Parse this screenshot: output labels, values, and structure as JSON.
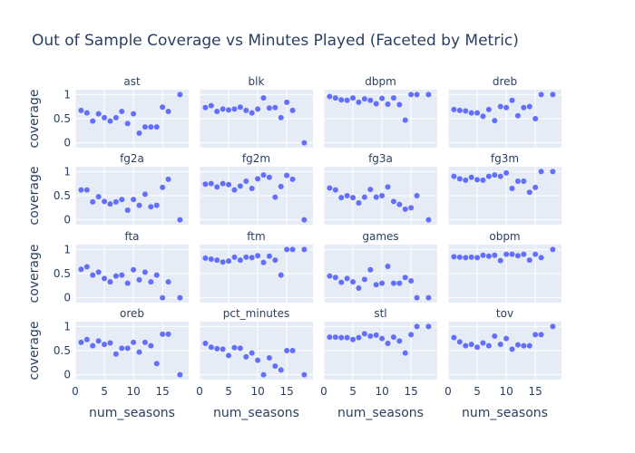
{
  "chart_data": {
    "type": "scatter",
    "title": "Out of Sample Coverage vs Minutes Played (Faceted by Metric)",
    "xlabel": "num_seasons",
    "ylabel": "coverage",
    "xlim": [
      0,
      19.5
    ],
    "ylim": [
      -0.1,
      1.1
    ],
    "x_ticks": [
      0,
      5,
      10,
      15
    ],
    "y_ticks": [
      0,
      0.5,
      1
    ],
    "grid": true,
    "colors": {
      "marker": "#636efa",
      "plot_bg": "#e5ecf6",
      "grid": "#ffffff",
      "text": "#2a3f5f"
    },
    "facets": [
      {
        "name": "ast",
        "x": [
          1,
          2,
          3,
          4,
          5,
          6,
          7,
          8,
          9,
          10,
          11,
          12,
          13,
          14,
          15,
          16,
          18
        ],
        "y": [
          0.67,
          0.62,
          0.45,
          0.6,
          0.52,
          0.45,
          0.52,
          0.65,
          0.4,
          0.6,
          0.2,
          0.33,
          0.33,
          0.33,
          0.74,
          0.65,
          1.0
        ]
      },
      {
        "name": "blk",
        "x": [
          1,
          2,
          3,
          4,
          5,
          6,
          7,
          8,
          9,
          10,
          11,
          12,
          13,
          14,
          15,
          16,
          18
        ],
        "y": [
          0.73,
          0.77,
          0.65,
          0.7,
          0.68,
          0.7,
          0.74,
          0.67,
          0.62,
          0.7,
          0.93,
          0.72,
          0.73,
          0.52,
          0.84,
          0.67,
          0.0
        ]
      },
      {
        "name": "dbpm",
        "x": [
          1,
          2,
          3,
          4,
          5,
          6,
          7,
          8,
          9,
          10,
          11,
          12,
          13,
          14,
          15,
          16,
          18
        ],
        "y": [
          0.96,
          0.93,
          0.89,
          0.88,
          0.93,
          0.84,
          0.91,
          0.88,
          0.81,
          0.92,
          0.8,
          0.93,
          0.79,
          0.47,
          1.0,
          1.0,
          1.0
        ]
      },
      {
        "name": "dreb",
        "x": [
          1,
          2,
          3,
          4,
          5,
          6,
          7,
          8,
          9,
          10,
          11,
          12,
          13,
          14,
          15,
          16,
          18
        ],
        "y": [
          0.69,
          0.67,
          0.66,
          0.62,
          0.62,
          0.55,
          0.69,
          0.46,
          0.75,
          0.73,
          0.88,
          0.56,
          0.73,
          0.75,
          0.5,
          1.0,
          1.0
        ]
      },
      {
        "name": "fg2a",
        "x": [
          1,
          2,
          3,
          4,
          5,
          6,
          7,
          8,
          9,
          10,
          11,
          12,
          13,
          14,
          15,
          16,
          18
        ],
        "y": [
          0.62,
          0.62,
          0.37,
          0.48,
          0.38,
          0.33,
          0.37,
          0.42,
          0.2,
          0.42,
          0.3,
          0.53,
          0.27,
          0.3,
          0.67,
          0.84,
          0.0
        ]
      },
      {
        "name": "fg2m",
        "x": [
          1,
          2,
          3,
          4,
          5,
          6,
          7,
          8,
          9,
          10,
          11,
          12,
          13,
          14,
          15,
          16,
          18
        ],
        "y": [
          0.74,
          0.75,
          0.68,
          0.75,
          0.73,
          0.62,
          0.7,
          0.8,
          0.65,
          0.85,
          0.93,
          0.88,
          0.47,
          0.69,
          0.92,
          0.84,
          0.0
        ]
      },
      {
        "name": "fg3a",
        "x": [
          1,
          2,
          3,
          4,
          5,
          6,
          7,
          8,
          9,
          10,
          11,
          12,
          13,
          14,
          15,
          16,
          18
        ],
        "y": [
          0.66,
          0.62,
          0.46,
          0.5,
          0.46,
          0.35,
          0.47,
          0.63,
          0.47,
          0.5,
          0.68,
          0.38,
          0.32,
          0.22,
          0.25,
          0.5,
          0.0
        ]
      },
      {
        "name": "fg3m",
        "x": [
          1,
          2,
          3,
          4,
          5,
          6,
          7,
          8,
          9,
          10,
          11,
          12,
          13,
          14,
          15,
          16,
          18
        ],
        "y": [
          0.9,
          0.85,
          0.82,
          0.88,
          0.83,
          0.82,
          0.9,
          0.93,
          0.9,
          0.97,
          0.65,
          0.8,
          0.8,
          0.57,
          0.67,
          1.0,
          1.0
        ]
      },
      {
        "name": "fta",
        "x": [
          1,
          2,
          3,
          4,
          5,
          6,
          7,
          8,
          9,
          10,
          11,
          12,
          13,
          14,
          15,
          16,
          18
        ],
        "y": [
          0.59,
          0.64,
          0.47,
          0.53,
          0.4,
          0.33,
          0.45,
          0.47,
          0.3,
          0.58,
          0.37,
          0.53,
          0.33,
          0.47,
          0.0,
          0.33,
          0.0
        ]
      },
      {
        "name": "ftm",
        "x": [
          1,
          2,
          3,
          4,
          5,
          6,
          7,
          8,
          9,
          10,
          11,
          12,
          13,
          14,
          15,
          16,
          18
        ],
        "y": [
          0.82,
          0.8,
          0.78,
          0.74,
          0.76,
          0.84,
          0.78,
          0.84,
          0.83,
          0.87,
          0.73,
          0.86,
          0.78,
          0.47,
          1.0,
          1.0,
          1.0
        ]
      },
      {
        "name": "games",
        "x": [
          1,
          2,
          3,
          4,
          5,
          6,
          7,
          8,
          9,
          10,
          11,
          12,
          13,
          14,
          15,
          16,
          18
        ],
        "y": [
          0.45,
          0.42,
          0.32,
          0.4,
          0.33,
          0.2,
          0.38,
          0.58,
          0.27,
          0.3,
          0.65,
          0.3,
          0.3,
          0.42,
          0.35,
          0.0,
          0.0
        ]
      },
      {
        "name": "obpm",
        "x": [
          1,
          2,
          3,
          4,
          5,
          6,
          7,
          8,
          9,
          10,
          11,
          12,
          13,
          14,
          15,
          16,
          18
        ],
        "y": [
          0.85,
          0.84,
          0.83,
          0.84,
          0.83,
          0.88,
          0.86,
          0.88,
          0.77,
          0.9,
          0.9,
          0.87,
          0.9,
          0.78,
          0.9,
          0.83,
          1.0
        ]
      },
      {
        "name": "oreb",
        "x": [
          1,
          2,
          3,
          4,
          5,
          6,
          7,
          8,
          9,
          10,
          11,
          12,
          13,
          14,
          15,
          16,
          18
        ],
        "y": [
          0.67,
          0.73,
          0.6,
          0.7,
          0.63,
          0.66,
          0.43,
          0.55,
          0.55,
          0.67,
          0.47,
          0.67,
          0.6,
          0.23,
          0.84,
          0.84,
          0.0
        ]
      },
      {
        "name": "pct_minutes",
        "x": [
          1,
          2,
          3,
          4,
          5,
          6,
          7,
          8,
          9,
          10,
          11,
          12,
          13,
          14,
          15,
          16,
          18
        ],
        "y": [
          0.65,
          0.57,
          0.54,
          0.53,
          0.4,
          0.56,
          0.55,
          0.37,
          0.45,
          0.3,
          0.0,
          0.35,
          0.18,
          0.1,
          0.5,
          0.5,
          0.0
        ]
      },
      {
        "name": "stl",
        "x": [
          1,
          2,
          3,
          4,
          5,
          6,
          7,
          8,
          9,
          10,
          11,
          12,
          13,
          14,
          15,
          16,
          18
        ],
        "y": [
          0.78,
          0.78,
          0.77,
          0.77,
          0.73,
          0.77,
          0.85,
          0.8,
          0.82,
          0.75,
          0.65,
          0.78,
          0.7,
          0.45,
          0.83,
          1.0,
          1.0
        ]
      },
      {
        "name": "tov",
        "x": [
          1,
          2,
          3,
          4,
          5,
          6,
          7,
          8,
          9,
          10,
          11,
          12,
          13,
          14,
          15,
          16,
          18
        ],
        "y": [
          0.77,
          0.68,
          0.6,
          0.63,
          0.57,
          0.66,
          0.6,
          0.8,
          0.63,
          0.75,
          0.53,
          0.62,
          0.6,
          0.6,
          0.83,
          0.83,
          1.0
        ]
      }
    ]
  }
}
